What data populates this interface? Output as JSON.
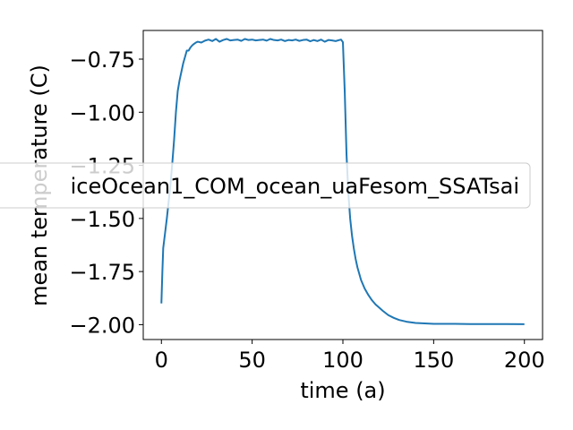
{
  "chart_data": {
    "type": "line",
    "xlabel": "time (a)",
    "ylabel": "mean temperature (C)",
    "xlim": [
      -10,
      210
    ],
    "ylim": [
      -2.07,
      -0.615
    ],
    "xticks": [
      0,
      50,
      100,
      150,
      200
    ],
    "yticks": [
      -2.0,
      -1.75,
      -1.5,
      -1.25,
      -1.0,
      -0.75
    ],
    "xtick_labels": [
      "0",
      "50",
      "100",
      "150",
      "200"
    ],
    "ytick_labels": [
      "−2.00",
      "−1.75",
      "−1.50",
      "−1.25",
      "−1.00",
      "−0.75"
    ],
    "grid": false,
    "legend_position": "center",
    "series": [
      {
        "name": "iceOcean1_COM_ocean_uaFesom_SSATsai",
        "color": "#1f77b4",
        "x": [
          0,
          0.5,
          1,
          2,
          3,
          4,
          5,
          6,
          7,
          8,
          9,
          10,
          11,
          12,
          13,
          14,
          15,
          16,
          17,
          18,
          19,
          20,
          22,
          24,
          26,
          28,
          30,
          32,
          34,
          36,
          38,
          40,
          42,
          44,
          46,
          48,
          50,
          52,
          54,
          56,
          58,
          60,
          62,
          64,
          66,
          68,
          70,
          72,
          74,
          76,
          78,
          80,
          82,
          84,
          86,
          88,
          90,
          92,
          94,
          96,
          98,
          99,
          100,
          101,
          102,
          103,
          104,
          105,
          106,
          107,
          108,
          109,
          110,
          112,
          114,
          116,
          118,
          120,
          122,
          125,
          128,
          131,
          135,
          140,
          145,
          150,
          160,
          170,
          180,
          190,
          200
        ],
        "y": [
          -1.9,
          -1.76,
          -1.64,
          -1.57,
          -1.5,
          -1.42,
          -1.34,
          -1.24,
          -1.13,
          -1.0,
          -0.9,
          -0.85,
          -0.81,
          -0.77,
          -0.74,
          -0.71,
          -0.71,
          -0.695,
          -0.685,
          -0.678,
          -0.672,
          -0.668,
          -0.672,
          -0.663,
          -0.658,
          -0.665,
          -0.655,
          -0.668,
          -0.66,
          -0.655,
          -0.662,
          -0.66,
          -0.658,
          -0.664,
          -0.655,
          -0.66,
          -0.658,
          -0.662,
          -0.66,
          -0.658,
          -0.663,
          -0.655,
          -0.66,
          -0.662,
          -0.658,
          -0.665,
          -0.66,
          -0.662,
          -0.658,
          -0.664,
          -0.66,
          -0.658,
          -0.666,
          -0.66,
          -0.665,
          -0.658,
          -0.668,
          -0.66,
          -0.662,
          -0.665,
          -0.66,
          -0.658,
          -0.67,
          -0.9,
          -1.2,
          -1.38,
          -1.5,
          -1.58,
          -1.64,
          -1.69,
          -1.73,
          -1.76,
          -1.79,
          -1.83,
          -1.86,
          -1.885,
          -1.905,
          -1.92,
          -1.935,
          -1.955,
          -1.968,
          -1.978,
          -1.986,
          -1.992,
          -1.994,
          -1.996,
          -1.996,
          -1.997,
          -1.997,
          -1.997,
          -1.998
        ]
      }
    ]
  }
}
